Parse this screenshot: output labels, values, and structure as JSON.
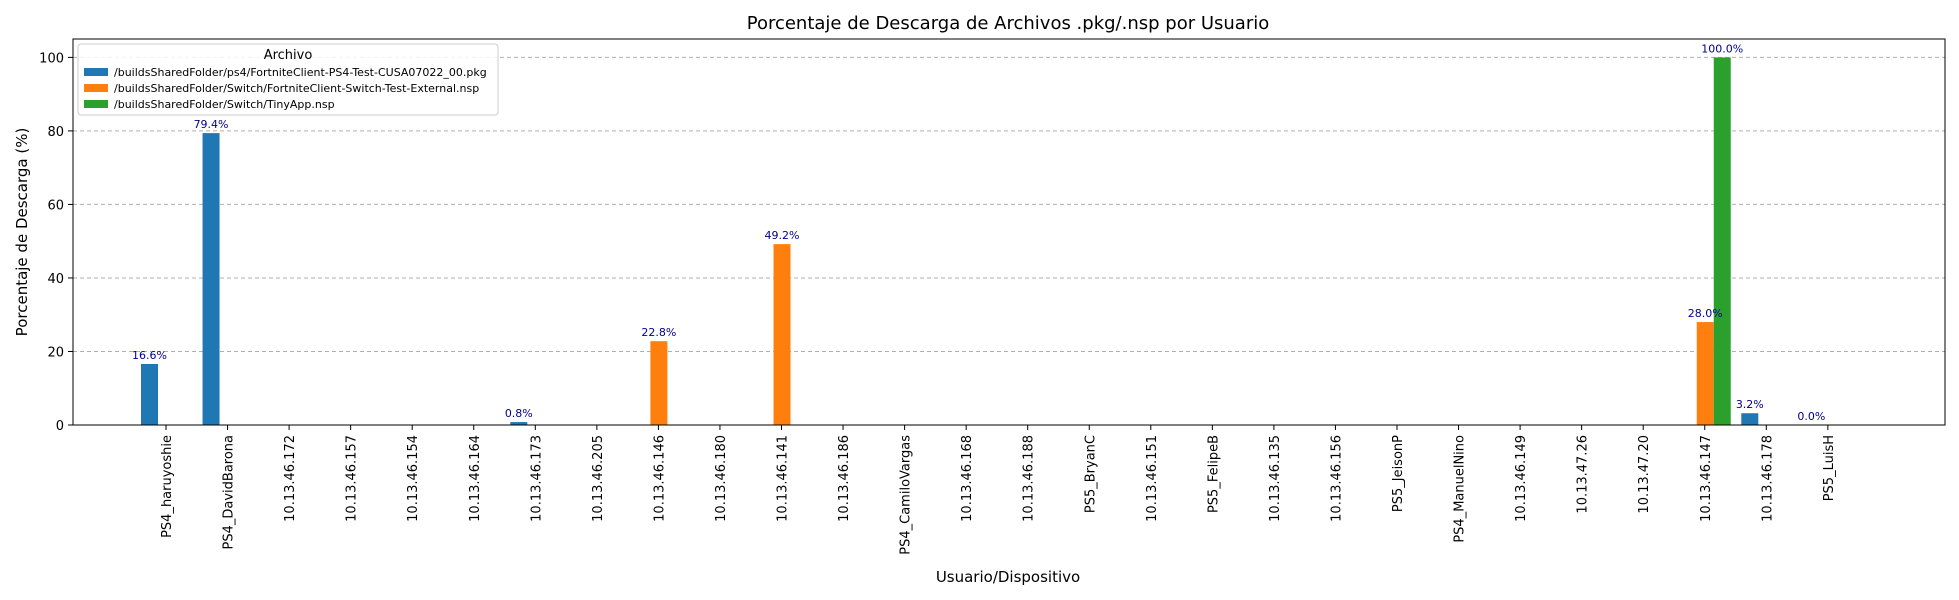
{
  "chart_data": {
    "type": "bar",
    "title": "Porcentaje de Descarga de Archivos .pkg/.nsp por Usuario",
    "xlabel": "Usuario/Dispositivo",
    "ylabel": "Porcentaje de Descarga (%)",
    "ylim": [
      0,
      105
    ],
    "yticks": [
      "0",
      "20",
      "40",
      "60",
      "80",
      "100"
    ],
    "grid": "y, dashed",
    "legend_placement": "top-left",
    "legend_title": "Archivo",
    "categories": [
      "PS4_haruyoshie",
      "PS4_DavidBarona",
      "10.13.46.172",
      "10.13.46.157",
      "10.13.46.154",
      "10.13.46.164",
      "10.13.46.173",
      "10.13.46.205",
      "10.13.46.146",
      "10.13.46.180",
      "10.13.46.141",
      "10.13.46.186",
      "PS4_CamiloVargas",
      "10.13.46.168",
      "10.13.46.188",
      "PS5_BryanC",
      "10.13.46.151",
      "PS5_FelipeB",
      "10.13.46.135",
      "10.13.46.156",
      "PS5_JeisonP",
      "PS4_ManuelNino",
      "10.13.46.149",
      "10.13.47.26",
      "10.13.47.20",
      "10.13.46.147",
      "10.13.46.178",
      "PS5_LuisH"
    ],
    "series": [
      {
        "name": "/buildsSharedFolder/ps4/FortniteClient-PS4-Test-CUSA07022_00.pkg",
        "color": "#1f77b4",
        "values": [
          16.6,
          79.4,
          null,
          null,
          null,
          null,
          0.8,
          null,
          null,
          null,
          null,
          null,
          null,
          null,
          null,
          null,
          null,
          null,
          null,
          null,
          null,
          null,
          null,
          null,
          null,
          null,
          3.2,
          0.0
        ],
        "labels": [
          "16.6%",
          "79.4%",
          null,
          null,
          null,
          null,
          "0.8%",
          null,
          null,
          null,
          null,
          null,
          null,
          null,
          null,
          null,
          null,
          null,
          null,
          null,
          null,
          null,
          null,
          null,
          null,
          null,
          "3.2%",
          "0.0%"
        ]
      },
      {
        "name": "/buildsSharedFolder/Switch/FortniteClient-Switch-Test-External.nsp",
        "color": "#ff7f0e",
        "values": [
          null,
          null,
          null,
          null,
          null,
          null,
          null,
          null,
          22.8,
          null,
          49.2,
          null,
          null,
          null,
          null,
          null,
          null,
          null,
          null,
          null,
          null,
          null,
          null,
          null,
          null,
          28.0,
          null,
          null
        ],
        "labels": [
          null,
          null,
          null,
          null,
          null,
          null,
          null,
          null,
          "22.8%",
          null,
          "49.2%",
          null,
          null,
          null,
          null,
          null,
          null,
          null,
          null,
          null,
          null,
          null,
          null,
          null,
          null,
          "28.0%",
          null,
          null
        ]
      },
      {
        "name": "/buildsSharedFolder/Switch/TinyApp.nsp",
        "color": "#2ca02c",
        "values": [
          null,
          null,
          null,
          null,
          null,
          null,
          null,
          null,
          null,
          null,
          null,
          null,
          null,
          null,
          null,
          null,
          null,
          null,
          null,
          null,
          null,
          null,
          null,
          null,
          null,
          100.0,
          null,
          null
        ],
        "labels": [
          null,
          null,
          null,
          null,
          null,
          null,
          null,
          null,
          null,
          null,
          null,
          null,
          null,
          null,
          null,
          null,
          null,
          null,
          null,
          null,
          null,
          null,
          null,
          null,
          null,
          "100.0%",
          null,
          null
        ]
      }
    ]
  }
}
